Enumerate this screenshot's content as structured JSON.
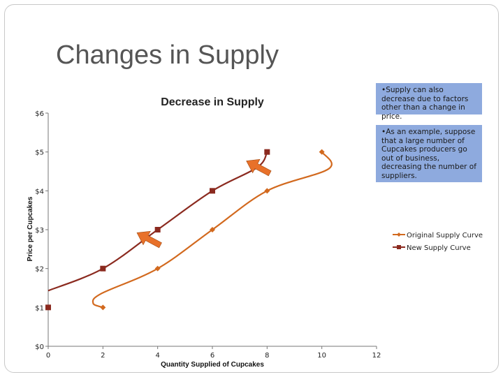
{
  "slide": {
    "title": "Changes in Supply",
    "notes": [
      "•Supply can also decrease due to factors other than a change in price.",
      "•As an example, suppose that a large number of Cupcakes producers go out of business, decreasing the number of suppliers."
    ]
  },
  "chart_data": {
    "type": "line",
    "title": "Decrease in Supply",
    "xlabel": "Quantity Supplied of Cupcakes",
    "ylabel": "Price per Cupcakes",
    "xlim": [
      0,
      12
    ],
    "ylim": [
      0,
      6
    ],
    "x_ticks": [
      "0",
      "2",
      "4",
      "6",
      "8",
      "10",
      "12"
    ],
    "y_ticks": [
      "$0",
      "$1",
      "$2",
      "$3",
      "$4",
      "$5",
      "$6"
    ],
    "grid": false,
    "legend_position": "right",
    "series": [
      {
        "name": "Original Supply Curve",
        "color": "#d2691e",
        "marker": "diamond",
        "points": [
          [
            2,
            1
          ],
          [
            4,
            2
          ],
          [
            6,
            3
          ],
          [
            8,
            4
          ],
          [
            10,
            5
          ]
        ]
      },
      {
        "name": "New Supply Curve",
        "color": "#8b2a1f",
        "marker": "square",
        "points": [
          [
            0,
            1
          ],
          [
            2,
            2
          ],
          [
            4,
            3
          ],
          [
            6,
            4
          ],
          [
            8,
            5
          ]
        ]
      }
    ],
    "annotations": [
      {
        "type": "arrow",
        "direction": "up-left",
        "color": "#e8712a"
      },
      {
        "type": "arrow",
        "direction": "up-left",
        "color": "#e8712a"
      }
    ]
  }
}
